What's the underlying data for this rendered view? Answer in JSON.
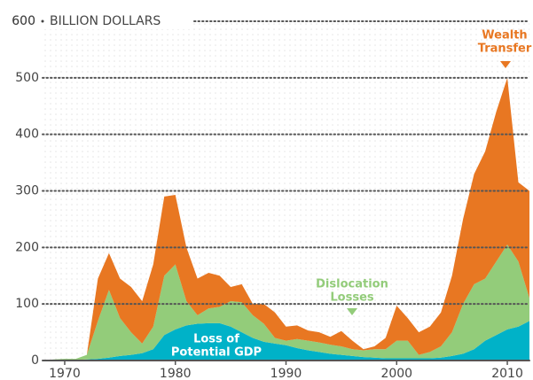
{
  "chart_data": {
    "type": "stacked_area",
    "ylabel": "BILLION DOLLARS",
    "x": [
      1968,
      1969,
      1970,
      1971,
      1972,
      1973,
      1974,
      1975,
      1976,
      1977,
      1978,
      1979,
      1980,
      1981,
      1982,
      1983,
      1984,
      1985,
      1986,
      1987,
      1988,
      1989,
      1990,
      1991,
      1992,
      1993,
      1994,
      1995,
      1996,
      1997,
      1998,
      1999,
      2000,
      2001,
      2002,
      2003,
      2004,
      2005,
      2006,
      2007,
      2008,
      2009,
      2010,
      2011,
      2012
    ],
    "series": [
      {
        "name": "Loss of Potential GDP",
        "color": "#00b2c8",
        "values": [
          0,
          0,
          0,
          1,
          2,
          3,
          5,
          8,
          10,
          13,
          20,
          45,
          55,
          62,
          65,
          66,
          66,
          60,
          50,
          40,
          33,
          30,
          27,
          22,
          18,
          15,
          12,
          10,
          8,
          6,
          5,
          4,
          4,
          4,
          4,
          4,
          5,
          8,
          12,
          20,
          35,
          45,
          55,
          60,
          70
        ]
      },
      {
        "name": "Dislocation Losses",
        "color": "#93cc7a",
        "values": [
          0,
          2,
          3,
          2,
          8,
          67,
          120,
          67,
          40,
          17,
          40,
          105,
          115,
          43,
          15,
          26,
          29,
          45,
          53,
          40,
          32,
          10,
          8,
          16,
          17,
          17,
          16,
          15,
          12,
          12,
          15,
          16,
          31,
          31,
          6,
          11,
          20,
          42,
          88,
          115,
          110,
          130,
          150,
          115,
          40
        ]
      },
      {
        "name": "Wealth Transfer",
        "color": "#e87722",
        "values": [
          0,
          0,
          0,
          0,
          0,
          75,
          65,
          70,
          80,
          75,
          110,
          140,
          123,
          95,
          65,
          63,
          55,
          25,
          32,
          20,
          35,
          45,
          25,
          24,
          18,
          18,
          14,
          27,
          15,
          2,
          5,
          20,
          62,
          40,
          40,
          45,
          60,
          100,
          150,
          195,
          225,
          265,
          295,
          140,
          190
        ]
      }
    ],
    "annotations": [
      {
        "lines": [
          "Wealth",
          "Transfer"
        ],
        "series": 2
      },
      {
        "lines": [
          "Dislocation",
          "Losses"
        ],
        "series": 1
      },
      {
        "lines": [
          "Loss of",
          "Potential GDP"
        ],
        "series": 0
      }
    ],
    "xlim": [
      1968,
      2012
    ],
    "xticks": [
      1970,
      1980,
      1990,
      2000,
      2010
    ],
    "ylim": [
      0,
      600
    ],
    "yticks": [
      0,
      100,
      200,
      300,
      400,
      500,
      600
    ],
    "grid": true
  }
}
